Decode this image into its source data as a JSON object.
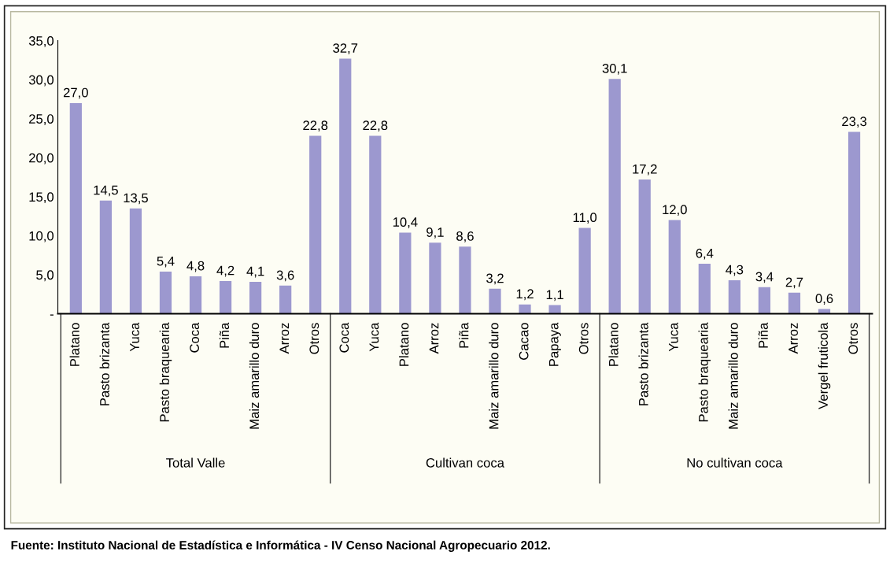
{
  "chart_data": {
    "type": "bar",
    "categories": [
      "Platano",
      "Pasto brizanta",
      "Yuca",
      "Pasto braquearia",
      "Coca",
      "Piña",
      "Maiz amarillo duro",
      "Arroz",
      "Otros",
      "Coca",
      "Yuca",
      "Platano",
      "Arroz",
      "Piña",
      "Maiz amarillo duro",
      "Cacao",
      "Papaya",
      "Otros",
      "Platano",
      "Pasto brizanta",
      "Yuca",
      "Pasto braquearia",
      "Maiz amarillo duro",
      "Piña",
      "Arroz",
      "Vergel fruticola",
      "Otros"
    ],
    "values": [
      27.0,
      14.5,
      13.5,
      5.4,
      4.8,
      4.2,
      4.1,
      3.6,
      22.8,
      32.7,
      22.8,
      10.4,
      9.1,
      8.6,
      3.2,
      1.2,
      1.1,
      11.0,
      30.1,
      17.2,
      12.0,
      6.4,
      4.3,
      3.4,
      2.7,
      0.6,
      23.3
    ],
    "value_labels": [
      "27,0",
      "14,5",
      "13,5",
      "5,4",
      "4,8",
      "4,2",
      "4,1",
      "3,6",
      "22,8",
      "32,7",
      "22,8",
      "10,4",
      "9,1",
      "8,6",
      "3,2",
      "1,2",
      "1,1",
      "11,0",
      "30,1",
      "17,2",
      "12,0",
      "6,4",
      "4,3",
      "3,4",
      "2,7",
      "0,6",
      "23,3"
    ],
    "color": "#9c98cf",
    "ylim": [
      0,
      35
    ],
    "yticks": [
      {
        "value": 0,
        "label": "-"
      },
      {
        "value": 5,
        "label": "5,0"
      },
      {
        "value": 10,
        "label": "10,0"
      },
      {
        "value": 15,
        "label": "15,0"
      },
      {
        "value": 20,
        "label": "20,0"
      },
      {
        "value": 25,
        "label": "25,0"
      },
      {
        "value": 30,
        "label": "30,0"
      },
      {
        "value": 35,
        "label": "35,0"
      }
    ],
    "grid": false,
    "annotations": [
      "Total Valle",
      "Cultivan coca",
      "No cultivan coca",
      "Fuente: Instituto Nacional de Estadística e Informática - IV Censo Nacional Agropecuario 2012."
    ]
  }
}
